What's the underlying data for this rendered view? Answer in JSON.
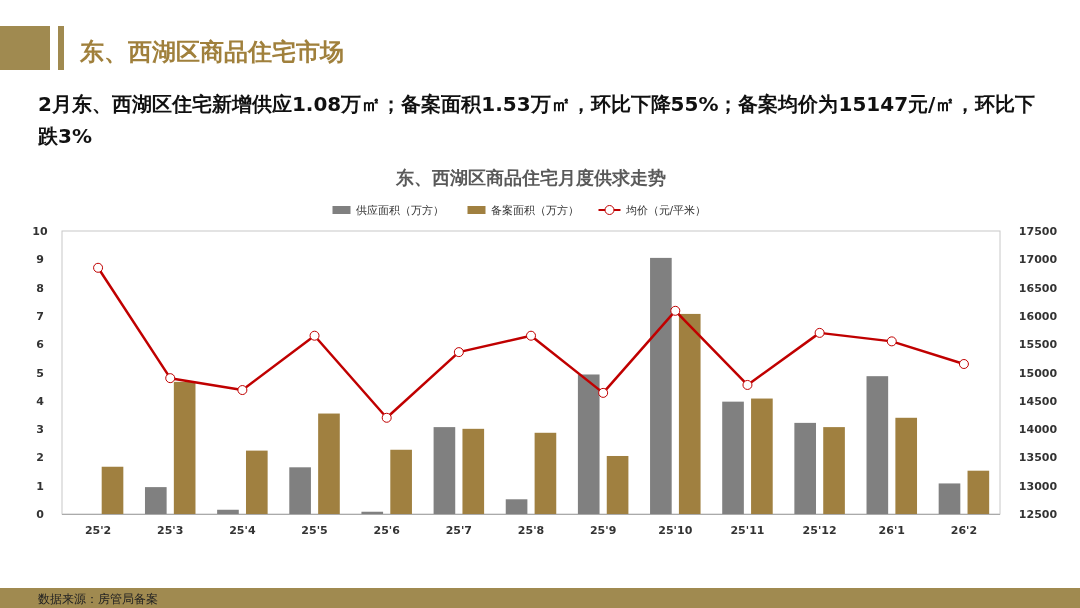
{
  "chart_data": {
    "type": "bar",
    "title": "东、西湖区商品住宅月度供求走势",
    "subtitle": "2月东、西湖区住宅新增供应1.08万㎡；备案面积1.53万㎡，环比下降55%；备案均价为15147元/㎡，环比下跌3%",
    "annotations": [
      "东、西湖区商品住宅市场",
      "数据来源：房管局备案"
    ],
    "categories": [
      "25'2",
      "25'3",
      "25'4",
      "25'5",
      "25'6",
      "25'7",
      "25'8",
      "25'9",
      "25'10",
      "25'11",
      "25'12",
      "26'1",
      "26'2"
    ],
    "series": [
      {
        "name": "供应面积（万方）",
        "color": "#808080",
        "values": [
          0,
          0.95,
          0.15,
          1.65,
          0.08,
          3.07,
          0.52,
          4.93,
          9.05,
          3.97,
          3.22,
          4.87,
          1.08
        ]
      },
      {
        "name": "备案面积（万方）",
        "color": "#a08040",
        "values": [
          1.67,
          4.67,
          2.24,
          3.55,
          2.27,
          3.01,
          2.87,
          2.05,
          7.07,
          4.08,
          3.07,
          3.4,
          1.53
        ]
      },
      {
        "name": "均价（元/平米）",
        "type": "line",
        "axis": "y2",
        "color": "#c00000",
        "values": [
          16850,
          14900,
          14690,
          15650,
          14200,
          15360,
          15650,
          14640,
          16090,
          14780,
          15700,
          15550,
          15150
        ]
      }
    ],
    "ylim": [
      0,
      10
    ],
    "yticks": [
      0,
      1,
      2,
      3,
      4,
      5,
      6,
      7,
      8,
      9,
      10
    ],
    "y2lim": [
      12500,
      17500
    ],
    "y2ticks": [
      12500,
      13000,
      13500,
      14000,
      14500,
      15000,
      15500,
      16000,
      16500,
      17000,
      17500
    ],
    "legend": "top",
    "grid": false,
    "marker": "circle",
    "line_style": "solid"
  }
}
